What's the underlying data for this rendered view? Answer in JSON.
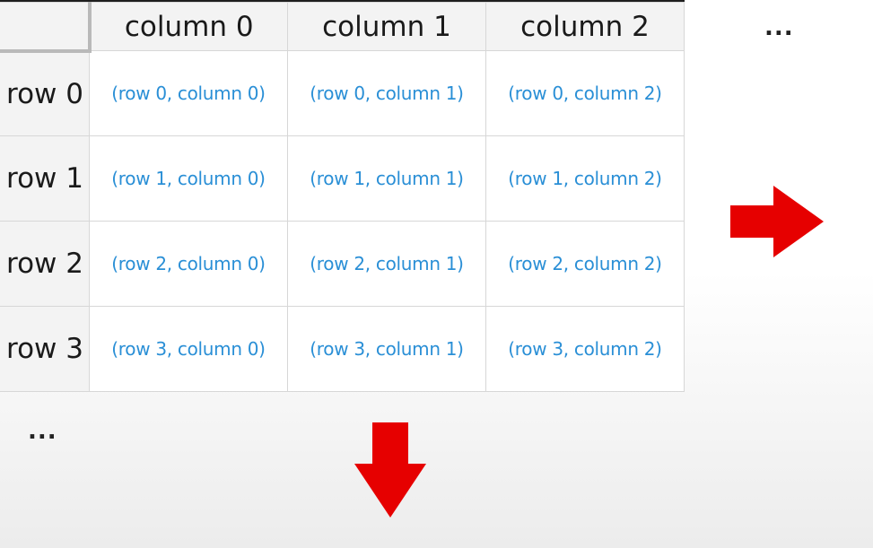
{
  "table": {
    "corner": "",
    "columns": [
      "column 0",
      "column 1",
      "column 2"
    ],
    "rows": [
      {
        "label": "row 0",
        "cells": [
          "(row 0, column 0)",
          "(row 0, column 1)",
          "(row 0, column 2)"
        ]
      },
      {
        "label": "row 1",
        "cells": [
          "(row 1, column 0)",
          "(row 1, column 1)",
          "(row 1, column 2)"
        ]
      },
      {
        "label": "row 2",
        "cells": [
          "(row 2, column 0)",
          "(row 2, column 1)",
          "(row 2, column 2)"
        ]
      },
      {
        "label": "row 3",
        "cells": [
          "(row 3, column 0)",
          "(row 3, column 1)",
          "(row 3, column 2)"
        ]
      }
    ]
  },
  "continuation": {
    "right": "...",
    "bottom": "..."
  },
  "icons": {
    "right_arrow": "arrow-right-icon",
    "down_arrow": "arrow-down-icon"
  },
  "colors": {
    "cell_text": "#2a8fd6",
    "arrow": "#e60000",
    "header_bg": "#f3f3f3"
  }
}
